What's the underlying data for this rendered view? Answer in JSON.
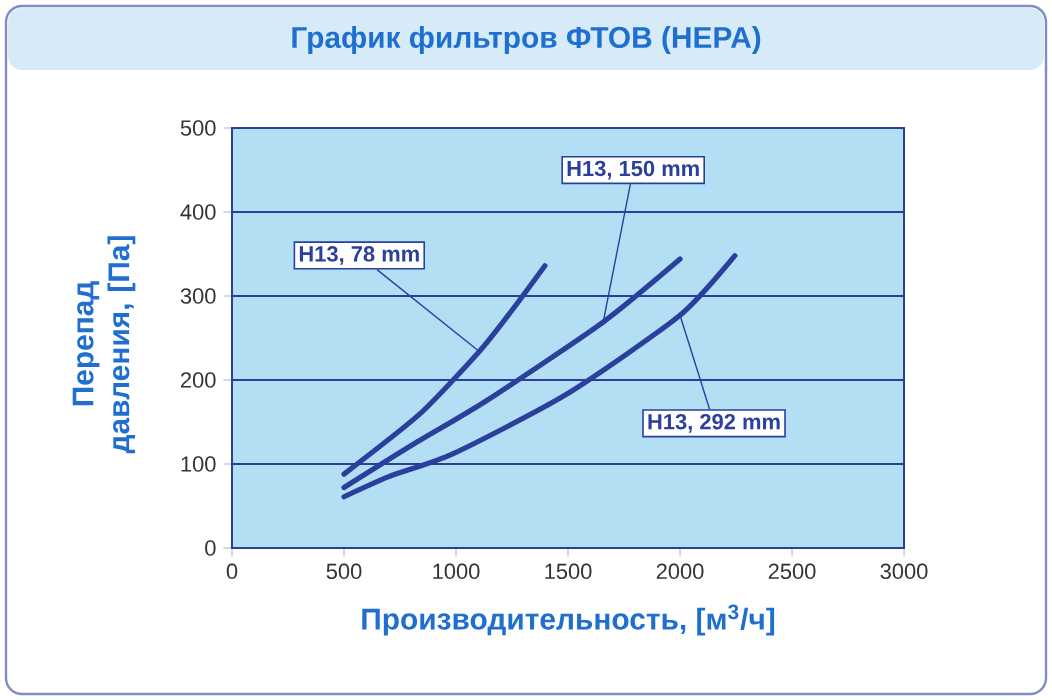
{
  "chart_data": {
    "type": "line",
    "title": "График фильтров ФТОВ (HEPA)",
    "xlabel": "Производительность, [м$^{3}$/ч]",
    "ylabel": "Перепад давления, [Па]",
    "xlim": [
      0,
      3000
    ],
    "ylim": [
      0,
      500
    ],
    "xticks": [
      0,
      500,
      1000,
      1500,
      2000,
      2500,
      3000
    ],
    "yticks": [
      0,
      100,
      200,
      300,
      400,
      500
    ],
    "grid": "y",
    "line_style": "solid",
    "series": [
      {
        "name": "H13, 78 mm",
        "color": "#2b3f9c",
        "x": [
          500,
          836,
          1104,
          1250,
          1397
        ],
        "values": [
          88,
          159,
          234,
          283,
          336
        ]
      },
      {
        "name": "H13, 150 mm",
        "color": "#2b3f9c",
        "x": [
          500,
          800,
          1134,
          1657,
          2000
        ],
        "values": [
          72,
          122,
          175,
          269,
          344
        ]
      },
      {
        "name": "H13, 292 mm",
        "color": "#2b3f9c",
        "x": [
          500,
          700,
          985,
          1493,
          2000,
          2245
        ],
        "values": [
          61,
          85,
          112,
          183,
          277,
          348
        ]
      }
    ]
  }
}
